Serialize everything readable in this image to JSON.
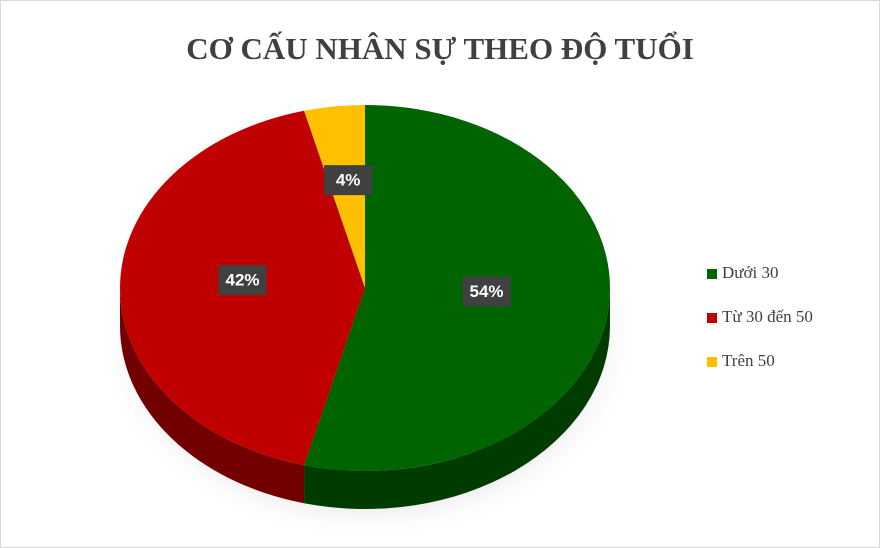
{
  "chart_data": {
    "type": "pie",
    "title": "CƠ CẤU NHÂN SỰ THEO ĐỘ TUỔI",
    "categories": [
      "Dưới 30",
      "Từ 30 đến 50",
      "Trên 50"
    ],
    "values": [
      54,
      42,
      4
    ],
    "value_labels": [
      "54%",
      "42%",
      "4%"
    ],
    "colors": [
      "#006400",
      "#c00000",
      "#ffc000"
    ],
    "legend": "right"
  }
}
